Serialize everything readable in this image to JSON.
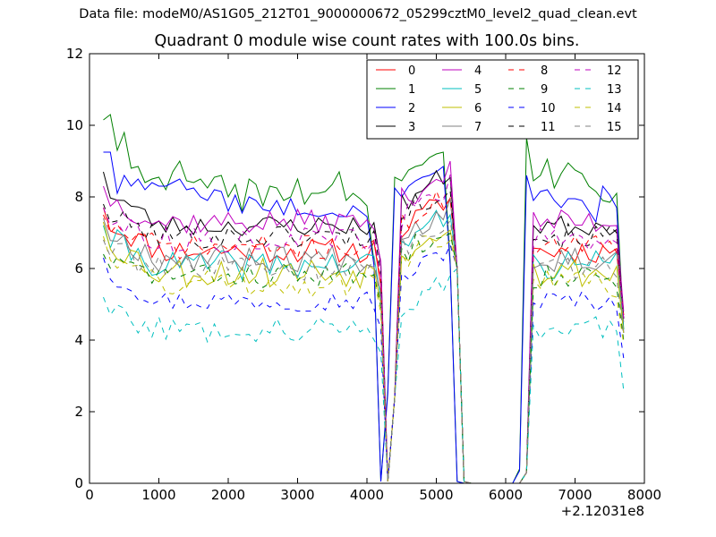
{
  "figure": {
    "suptitle": "Data file: modeM0/AS1G05_212T01_9000000672_05299cztM0_level2_quad_clean.evt"
  },
  "chart_data": {
    "type": "line",
    "title": "Quadrant 0 module wise count rates with 100.0s bins.",
    "xlabel": "",
    "ylabel": "",
    "x_offset_label": "+2.12031e8",
    "xlim": [
      0,
      8000
    ],
    "ylim": [
      0,
      12
    ],
    "xticks": [
      0,
      1000,
      2000,
      3000,
      4000,
      5000,
      6000,
      7000,
      8000
    ],
    "yticks": [
      0,
      2,
      4,
      6,
      8,
      10,
      12
    ],
    "grid": false,
    "legend_position": "top-right",
    "legend_columns": 4,
    "x": [
      200,
      300,
      400,
      500,
      600,
      700,
      800,
      900,
      1000,
      1100,
      1200,
      1300,
      1400,
      1500,
      1600,
      1700,
      1800,
      1900,
      2000,
      2100,
      2200,
      2300,
      2400,
      2500,
      2600,
      2700,
      2800,
      2900,
      3000,
      3100,
      3200,
      3300,
      3400,
      3500,
      3600,
      3700,
      3800,
      3900,
      4000,
      4100,
      4200,
      4300,
      4400,
      4500,
      4600,
      4700,
      4800,
      4900,
      5000,
      5100,
      5200,
      5300,
      5400,
      5500,
      5600,
      5700,
      5800,
      5900,
      6000,
      6100,
      6200,
      6300,
      6400,
      6500,
      6600,
      6700,
      6800,
      6900,
      7000,
      7100,
      7200,
      7300,
      7400,
      7500,
      7600,
      7700
    ],
    "series": [
      {
        "name": "0",
        "color": "#ff0000",
        "dash": "solid",
        "base": 6.5,
        "amp": 0.35,
        "start": 7.7,
        "final": 4.7,
        "seed": 11
      },
      {
        "name": "1",
        "color": "#008000",
        "dash": "solid",
        "values": [
          10.15,
          10.3,
          9.3,
          9.8,
          8.8,
          8.85,
          8.4,
          8.5,
          8.55,
          8.2,
          8.7,
          9.0,
          8.45,
          8.4,
          8.5,
          8.25,
          8.55,
          8.6,
          8.0,
          8.35,
          7.6,
          8.5,
          8.35,
          7.75,
          8.3,
          8.25,
          7.9,
          8.0,
          8.5,
          7.8,
          8.1,
          8.1,
          8.15,
          8.35,
          8.7,
          7.9,
          8.1,
          7.95,
          7.75,
          6.2,
          0.05,
          2.6,
          8.55,
          8.45,
          8.75,
          8.85,
          8.9,
          9.1,
          9.2,
          9.25,
          6.2,
          0.05,
          0,
          0,
          0,
          0,
          0,
          0,
          0,
          0,
          0.4,
          9.65,
          8.45,
          8.6,
          9.05,
          8.25,
          8.65,
          8.95,
          8.75,
          8.65,
          8.3,
          8.15,
          7.9,
          7.85,
          8.1,
          4.3
        ]
      },
      {
        "name": "2",
        "color": "#0000ff",
        "dash": "solid",
        "values": [
          9.25,
          9.25,
          8.1,
          8.6,
          8.3,
          8.5,
          8.2,
          8.4,
          8.3,
          8.3,
          8.4,
          8.5,
          8.2,
          8.25,
          8.0,
          7.9,
          8.2,
          8.15,
          7.6,
          8.05,
          7.55,
          8.0,
          7.9,
          7.65,
          7.6,
          7.9,
          7.5,
          7.95,
          7.5,
          7.55,
          7.5,
          7.45,
          7.5,
          7.55,
          7.45,
          7.45,
          7.75,
          7.6,
          7.45,
          6.1,
          0.05,
          2.5,
          8.25,
          8.0,
          8.3,
          8.45,
          8.55,
          8.6,
          8.7,
          8.85,
          6.1,
          0.05,
          0,
          0,
          0,
          0,
          0,
          0,
          0,
          0,
          0.35,
          8.6,
          7.9,
          8.15,
          8.2,
          7.9,
          7.7,
          7.95,
          7.95,
          7.9,
          7.6,
          7.3,
          8.3,
          8.05,
          7.7,
          4.2
        ]
      },
      {
        "name": "3",
        "color": "#000000",
        "dash": "solid",
        "base": 7.2,
        "amp": 0.3,
        "start": 8.7,
        "final": 4.6,
        "seed": 23
      },
      {
        "name": "4",
        "color": "#bf00bf",
        "dash": "solid",
        "base": 7.3,
        "amp": 0.35,
        "start": 8.3,
        "final": 4.8,
        "seed": 37
      },
      {
        "name": "5",
        "color": "#00bfbf",
        "dash": "solid",
        "base": 6.1,
        "amp": 0.4,
        "start": 7.2,
        "final": 4.3,
        "seed": 41
      },
      {
        "name": "6",
        "color": "#bfbf00",
        "dash": "solid",
        "base": 5.9,
        "amp": 0.45,
        "start": 7.3,
        "final": 4.2,
        "seed": 53
      },
      {
        "name": "7",
        "color": "#808080",
        "dash": "solid",
        "base": 6.3,
        "amp": 0.4,
        "start": 7.4,
        "final": 4.5,
        "seed": 67
      },
      {
        "name": "8",
        "color": "#ff0000",
        "dash": "dashed",
        "base": 6.6,
        "amp": 0.35,
        "start": 7.5,
        "final": 4.7,
        "seed": 71
      },
      {
        "name": "9",
        "color": "#008000",
        "dash": "dashed",
        "base": 5.8,
        "amp": 0.35,
        "start": 6.4,
        "final": 4.0,
        "seed": 83
      },
      {
        "name": "10",
        "color": "#0000ff",
        "dash": "dashed",
        "base": 5.1,
        "amp": 0.3,
        "start": 6.3,
        "final": 3.5,
        "seed": 97
      },
      {
        "name": "11",
        "color": "#000000",
        "dash": "dashed",
        "base": 6.9,
        "amp": 0.35,
        "start": 7.8,
        "final": 4.6,
        "seed": 101
      },
      {
        "name": "12",
        "color": "#bf00bf",
        "dash": "dashed",
        "base": 6.8,
        "amp": 0.35,
        "start": 7.7,
        "final": 4.6,
        "seed": 113
      },
      {
        "name": "13",
        "color": "#00bfbf",
        "dash": "dashed",
        "base": 4.3,
        "amp": 0.35,
        "start": 5.2,
        "final": 2.6,
        "seed": 127
      },
      {
        "name": "14",
        "color": "#bfbf00",
        "dash": "dashed",
        "base": 5.6,
        "amp": 0.4,
        "start": 6.9,
        "final": 3.9,
        "seed": 131
      },
      {
        "name": "15",
        "color": "#808080",
        "dash": "dashed",
        "base": 6.0,
        "amp": 0.35,
        "start": 6.8,
        "final": 4.1,
        "seed": 139
      }
    ]
  }
}
